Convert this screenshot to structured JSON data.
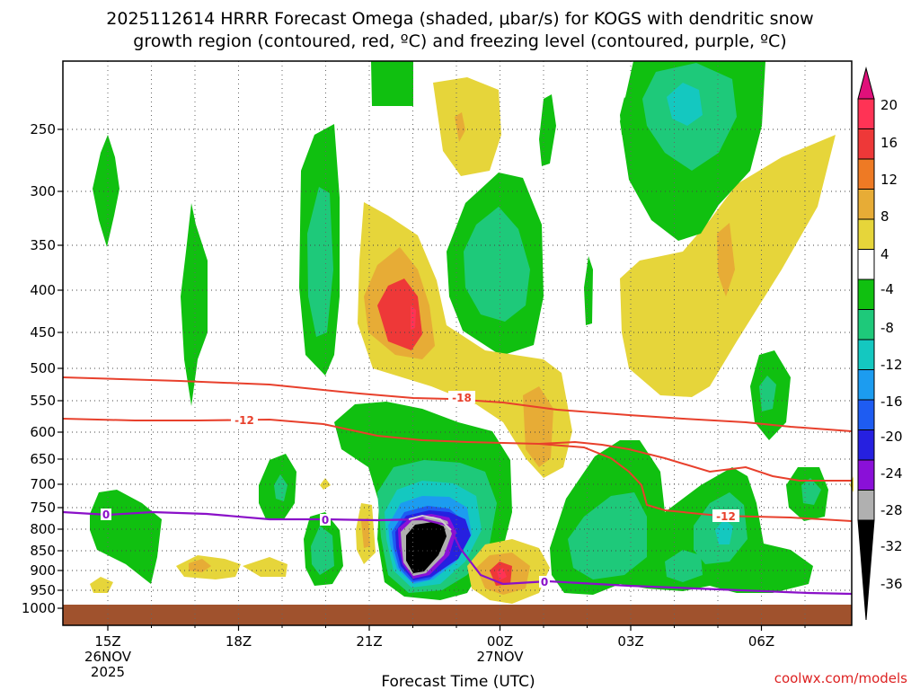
{
  "chart_data": {
    "type": "contour",
    "title_line1": "2025112614 HRRR Forecast Omega (shaded, μbar/s) for KOGS with dendritic snow",
    "title_line2": "growth region (contoured, red, ºC) and freezing level (contoured, purple, ºC)",
    "xlabel": "Forecast Time (UTC)",
    "credit": "coolwx.com/models",
    "x_ticks": [
      {
        "t": 15,
        "lines": [
          "15Z",
          "26NOV",
          "2025"
        ]
      },
      {
        "t": 18,
        "lines": [
          "18Z"
        ]
      },
      {
        "t": 21,
        "lines": [
          "21Z"
        ]
      },
      {
        "t": 24,
        "lines": [
          "00Z",
          "27NOV"
        ]
      },
      {
        "t": 27,
        "lines": [
          "03Z"
        ]
      },
      {
        "t": 30,
        "lines": [
          "06Z"
        ]
      }
    ],
    "xlim": [
      14.0,
      32.0
    ],
    "y_ticks": [
      250,
      300,
      350,
      400,
      450,
      500,
      550,
      600,
      650,
      700,
      750,
      800,
      850,
      900,
      950,
      1000
    ],
    "ylim_hpa": [
      1000,
      200
    ],
    "y_scale": "log-pressure",
    "colorbar": {
      "labels": [
        "20",
        "16",
        "12",
        "8",
        "4",
        "-4",
        "-8",
        "-12",
        "-16",
        "-20",
        "-24",
        "-28",
        "-32",
        "-36"
      ],
      "colors": [
        "#ff3355",
        "#ee3838",
        "#ee7a24",
        "#e7ac36",
        "#e6d53a",
        "#ffffff",
        "#10c010",
        "#1ec97a",
        "#14c8c0",
        "#1c9cf0",
        "#1e5cf2",
        "#2620e0",
        "#8a10d8",
        "#b0b0b0",
        "#000000"
      ],
      "top_arrow_color": "#e0107a",
      "bottom_arrow_color": "#000000"
    },
    "contour_labels": {
      "red": [
        "-18",
        "-12",
        "-12"
      ],
      "purple": [
        "0",
        "0",
        "0"
      ]
    },
    "ground_color": "#a0522d"
  }
}
